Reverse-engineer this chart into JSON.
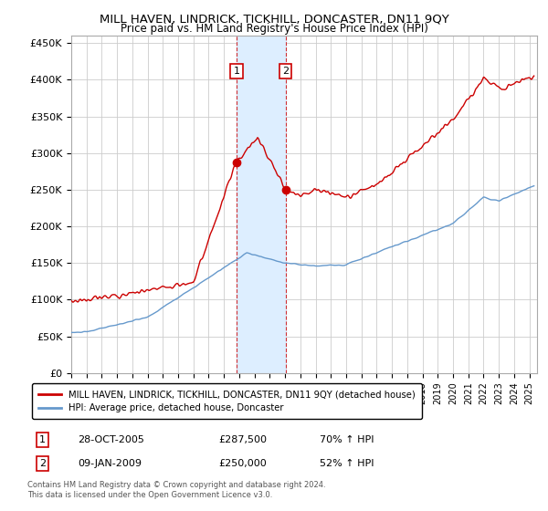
{
  "title": "MILL HAVEN, LINDRICK, TICKHILL, DONCASTER, DN11 9QY",
  "subtitle": "Price paid vs. HM Land Registry's House Price Index (HPI)",
  "legend_label_red": "MILL HAVEN, LINDRICK, TICKHILL, DONCASTER, DN11 9QY (detached house)",
  "legend_label_blue": "HPI: Average price, detached house, Doncaster",
  "annotation1_label": "1",
  "annotation1_date": "28-OCT-2005",
  "annotation1_price": "£287,500",
  "annotation1_hpi": "70% ↑ HPI",
  "annotation2_label": "2",
  "annotation2_date": "09-JAN-2009",
  "annotation2_price": "£250,000",
  "annotation2_hpi": "52% ↑ HPI",
  "footer": "Contains HM Land Registry data © Crown copyright and database right 2024.\nThis data is licensed under the Open Government Licence v3.0.",
  "ylim": [
    0,
    460000
  ],
  "yticks": [
    0,
    50000,
    100000,
    150000,
    200000,
    250000,
    300000,
    350000,
    400000,
    450000
  ],
  "ytick_labels": [
    "£0",
    "£50K",
    "£100K",
    "£150K",
    "£200K",
    "£250K",
    "£300K",
    "£350K",
    "£400K",
    "£450K"
  ],
  "xlim_start": 1995.0,
  "xlim_end": 2025.5,
  "sale1_x": 2005.83,
  "sale1_y": 287500,
  "sale2_x": 2009.03,
  "sale2_y": 250000,
  "shade_x1": 2005.83,
  "shade_x2": 2009.03,
  "red_color": "#cc0000",
  "blue_color": "#6699cc",
  "shade_color": "#ddeeff",
  "grid_color": "#cccccc",
  "background_color": "#ffffff"
}
